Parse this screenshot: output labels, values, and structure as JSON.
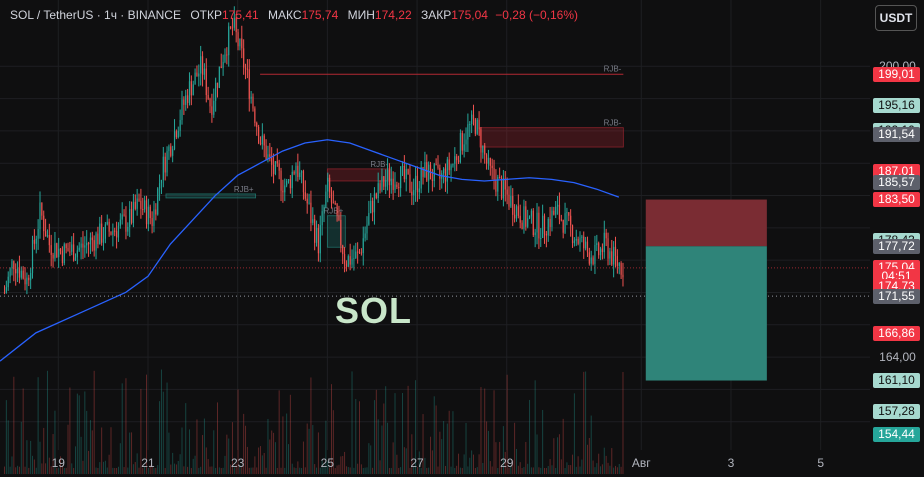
{
  "header": {
    "symbol": "SOL / TetherUS · 1ч · BINANCE",
    "open_label": "ОТКР",
    "open_value": "175,41",
    "high_label": "МАКС",
    "high_value": "175,74",
    "low_label": "МИН",
    "low_value": "174,22",
    "close_label": "ЗАКР",
    "close_value": "175,04",
    "change": "−0,28 (−0,16%)"
  },
  "currency_button": "USDT",
  "watermark": "SOL",
  "price_tags": [
    {
      "text": "199,01",
      "price": 199.01,
      "style": "red"
    },
    {
      "text": "195,16",
      "price": 195.16,
      "style": "lteal"
    },
    {
      "text": "192,10",
      "price": 192.1,
      "style": "lteal"
    },
    {
      "text": "191,54",
      "price": 191.54,
      "style": "gray"
    },
    {
      "text": "187,01",
      "price": 187.01,
      "style": "red"
    },
    {
      "text": "185,57",
      "price": 185.57,
      "style": "gray"
    },
    {
      "text": "183,50",
      "price": 183.5,
      "style": "red"
    },
    {
      "text": "178,43",
      "price": 178.43,
      "style": "lteal"
    },
    {
      "text": "177,72",
      "price": 177.72,
      "style": "gray"
    },
    {
      "text": "175,04",
      "price": 175.04,
      "style": "red"
    },
    {
      "text": "04:51",
      "price": 173.95,
      "style": "red"
    },
    {
      "text": "174,73",
      "price": 172.8,
      "style": "red"
    },
    {
      "text": "171,55",
      "price": 171.55,
      "style": "gray"
    },
    {
      "text": "166,86",
      "price": 166.86,
      "style": "red"
    },
    {
      "text": "161,10",
      "price": 161.1,
      "style": "lteal"
    },
    {
      "text": "157,28",
      "price": 157.28,
      "style": "lteal"
    },
    {
      "text": "154,44",
      "price": 154.44,
      "style": "green"
    }
  ],
  "axis_ticks_y": [
    {
      "text": "200,00",
      "price": 200
    },
    {
      "text": "164,00",
      "price": 164
    }
  ],
  "chart_data": {
    "type": "candlestick",
    "symbol": "SOL / TetherUS",
    "interval": "1ч",
    "exchange": "BINANCE",
    "x_tick_labels": [
      "19",
      "21",
      "23",
      "25",
      "27",
      "29",
      "Авг",
      "3",
      "5"
    ],
    "x_tick_days": [
      19,
      21,
      23,
      25,
      27,
      29,
      32,
      34,
      36
    ],
    "y_range": [
      152.5,
      203.5
    ],
    "x_range_days": [
      17.7,
      37.1
    ],
    "price_path": [
      [
        17.8,
        172
      ],
      [
        18.0,
        176
      ],
      [
        18.3,
        173.5
      ],
      [
        18.6,
        182
      ],
      [
        18.8,
        178
      ],
      [
        19.1,
        177
      ],
      [
        19.5,
        177.5
      ],
      [
        19.9,
        179
      ],
      [
        20.3,
        180
      ],
      [
        20.6,
        181
      ],
      [
        20.8,
        183
      ],
      [
        21.1,
        181
      ],
      [
        21.3,
        187
      ],
      [
        21.6,
        192
      ],
      [
        21.9,
        197
      ],
      [
        22.2,
        200
      ],
      [
        22.4,
        195
      ],
      [
        22.7,
        202
      ],
      [
        22.9,
        205
      ],
      [
        23.2,
        199
      ],
      [
        23.5,
        191
      ],
      [
        23.8,
        187
      ],
      [
        24.1,
        185
      ],
      [
        24.3,
        188
      ],
      [
        24.6,
        182
      ],
      [
        24.8,
        178
      ],
      [
        25.0,
        185
      ],
      [
        25.2,
        181
      ],
      [
        25.4,
        176
      ],
      [
        25.7,
        176.5
      ],
      [
        26.0,
        183
      ],
      [
        26.3,
        186
      ],
      [
        26.6,
        186.5
      ],
      [
        26.9,
        185
      ],
      [
        27.2,
        187
      ],
      [
        27.5,
        186
      ],
      [
        27.8,
        188
      ],
      [
        28.1,
        192
      ],
      [
        28.3,
        193
      ],
      [
        28.6,
        187
      ],
      [
        29.0,
        184
      ],
      [
        29.4,
        181
      ],
      [
        29.8,
        180
      ],
      [
        30.1,
        182
      ],
      [
        30.4,
        180
      ],
      [
        30.8,
        177
      ],
      [
        31.0,
        176.5
      ],
      [
        31.2,
        178
      ],
      [
        31.4,
        176
      ],
      [
        31.6,
        175.04
      ]
    ],
    "ema_line": [
      [
        17.7,
        163.5
      ],
      [
        18.5,
        167
      ],
      [
        19.5,
        169.5
      ],
      [
        20.5,
        172
      ],
      [
        21.0,
        174
      ],
      [
        21.5,
        178
      ],
      [
        22.0,
        181
      ],
      [
        22.5,
        184
      ],
      [
        23.0,
        186.5
      ],
      [
        23.5,
        188
      ],
      [
        24.0,
        189.5
      ],
      [
        24.5,
        190.5
      ],
      [
        25.0,
        190.9
      ],
      [
        25.5,
        190.5
      ],
      [
        26.0,
        189.5
      ],
      [
        26.5,
        188.5
      ],
      [
        27.0,
        187.5
      ],
      [
        27.5,
        186.5
      ],
      [
        28.0,
        186
      ],
      [
        28.5,
        185.8
      ],
      [
        29.0,
        186
      ],
      [
        29.5,
        186.2
      ],
      [
        30.0,
        186
      ],
      [
        30.5,
        185.6
      ],
      [
        31.0,
        184.8
      ],
      [
        31.5,
        183.8
      ]
    ],
    "horizontal_levels": [
      {
        "price": 171.55,
        "style": "dotted"
      },
      {
        "price": 199.01,
        "from_day": 23.5,
        "to_day": 31.6,
        "label": "RJB-"
      }
    ],
    "order_blocks": [
      {
        "label": "RJB-",
        "from_day": 28.4,
        "to_day": 31.6,
        "top": 192.4,
        "bottom": 190.0
      },
      {
        "label": "RJB-",
        "from_day": 25.0,
        "to_day": 26.4,
        "top": 187.3,
        "bottom": 185.8
      },
      {
        "label": "RJB+",
        "from_day": 25.0,
        "to_day": 25.4,
        "top": 181.5,
        "bottom": 177.6
      },
      {
        "label": "RJB+",
        "from_day": 21.4,
        "to_day": 23.4,
        "top": 184.2,
        "bottom": 183.7
      }
    ],
    "position": {
      "entry": 177.72,
      "stop": 183.5,
      "target": 161.1,
      "from_day": 32.1,
      "to_day": 34.8
    },
    "last_price": 175.04,
    "volume_present": true
  }
}
